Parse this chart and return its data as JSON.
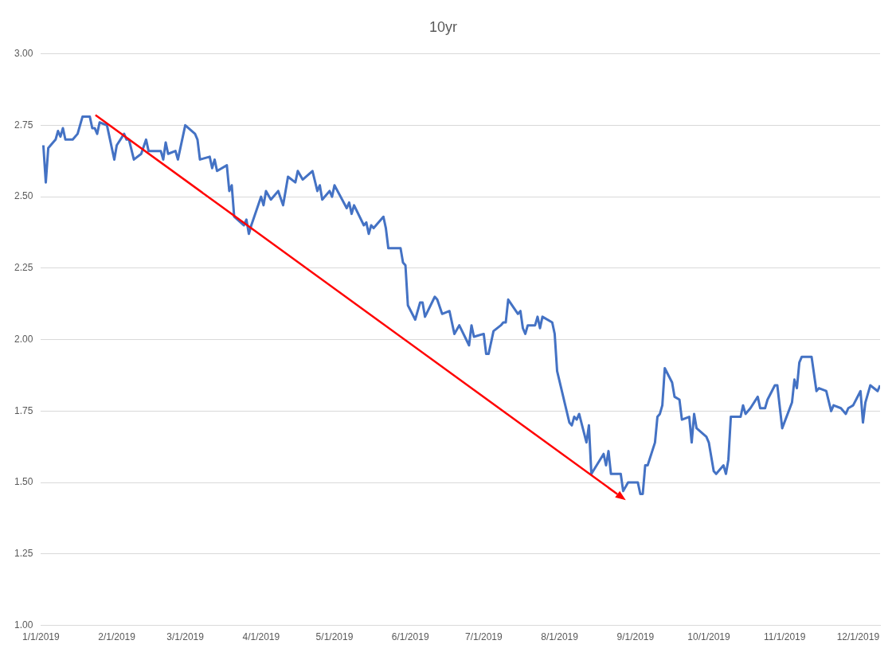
{
  "chart_data": {
    "type": "line",
    "title": "10yr",
    "x": [
      "2019-01-02",
      "2019-01-03",
      "2019-01-04",
      "2019-01-07",
      "2019-01-08",
      "2019-01-09",
      "2019-01-10",
      "2019-01-11",
      "2019-01-14",
      "2019-01-16",
      "2019-01-18",
      "2019-01-21",
      "2019-01-22",
      "2019-01-23",
      "2019-01-24",
      "2019-01-25",
      "2019-01-28",
      "2019-01-31",
      "2019-02-01",
      "2019-02-04",
      "2019-02-05",
      "2019-02-06",
      "2019-02-08",
      "2019-02-11",
      "2019-02-13",
      "2019-02-14",
      "2019-02-19",
      "2019-02-20",
      "2019-02-21",
      "2019-02-22",
      "2019-02-25",
      "2019-02-26",
      "2019-03-01",
      "2019-03-05",
      "2019-03-06",
      "2019-03-07",
      "2019-03-11",
      "2019-03-12",
      "2019-03-13",
      "2019-03-14",
      "2019-03-18",
      "2019-03-19",
      "2019-03-20",
      "2019-03-21",
      "2019-03-25",
      "2019-03-26",
      "2019-03-27",
      "2019-03-28",
      "2019-04-01",
      "2019-04-02",
      "2019-04-03",
      "2019-04-05",
      "2019-04-08",
      "2019-04-10",
      "2019-04-12",
      "2019-04-15",
      "2019-04-16",
      "2019-04-18",
      "2019-04-22",
      "2019-04-24",
      "2019-04-25",
      "2019-04-26",
      "2019-04-29",
      "2019-04-30",
      "2019-05-01",
      "2019-05-06",
      "2019-05-07",
      "2019-05-08",
      "2019-05-09",
      "2019-05-13",
      "2019-05-14",
      "2019-05-15",
      "2019-05-16",
      "2019-05-17",
      "2019-05-21",
      "2019-05-22",
      "2019-05-23",
      "2019-05-28",
      "2019-05-29",
      "2019-05-30",
      "2019-05-31",
      "2019-06-03",
      "2019-06-05",
      "2019-06-06",
      "2019-06-07",
      "2019-06-11",
      "2019-06-12",
      "2019-06-14",
      "2019-06-17",
      "2019-06-19",
      "2019-06-21",
      "2019-06-25",
      "2019-06-26",
      "2019-06-27",
      "2019-07-01",
      "2019-07-02",
      "2019-07-03",
      "2019-07-05",
      "2019-07-08",
      "2019-07-09",
      "2019-07-10",
      "2019-07-11",
      "2019-07-15",
      "2019-07-16",
      "2019-07-17",
      "2019-07-18",
      "2019-07-19",
      "2019-07-22",
      "2019-07-23",
      "2019-07-24",
      "2019-07-25",
      "2019-07-29",
      "2019-07-30",
      "2019-07-31",
      "2019-08-05",
      "2019-08-06",
      "2019-08-07",
      "2019-08-08",
      "2019-08-09",
      "2019-08-12",
      "2019-08-13",
      "2019-08-14",
      "2019-08-19",
      "2019-08-20",
      "2019-08-21",
      "2019-08-22",
      "2019-08-26",
      "2019-08-27",
      "2019-08-29",
      "2019-09-02",
      "2019-09-03",
      "2019-09-04",
      "2019-09-05",
      "2019-09-06",
      "2019-09-09",
      "2019-09-10",
      "2019-09-11",
      "2019-09-12",
      "2019-09-13",
      "2019-09-16",
      "2019-09-17",
      "2019-09-19",
      "2019-09-20",
      "2019-09-23",
      "2019-09-24",
      "2019-09-25",
      "2019-09-26",
      "2019-09-30",
      "2019-10-01",
      "2019-10-03",
      "2019-10-04",
      "2019-10-07",
      "2019-10-08",
      "2019-10-09",
      "2019-10-10",
      "2019-10-14",
      "2019-10-15",
      "2019-10-16",
      "2019-10-18",
      "2019-10-21",
      "2019-10-22",
      "2019-10-24",
      "2019-10-25",
      "2019-10-28",
      "2019-10-29",
      "2019-10-31",
      "2019-11-04",
      "2019-11-05",
      "2019-11-06",
      "2019-11-07",
      "2019-11-08",
      "2019-11-11",
      "2019-11-12",
      "2019-11-14",
      "2019-11-15",
      "2019-11-18",
      "2019-11-20",
      "2019-11-21",
      "2019-11-24",
      "2019-11-26",
      "2019-11-27",
      "2019-11-29",
      "2019-12-02",
      "2019-12-03",
      "2019-12-04",
      "2019-12-06",
      "2019-12-09",
      "2019-12-10"
    ],
    "series": [
      {
        "color": "#4472c4",
        "values": [
          2.68,
          2.55,
          2.67,
          2.7,
          2.73,
          2.71,
          2.74,
          2.7,
          2.7,
          2.72,
          2.78,
          2.78,
          2.74,
          2.74,
          2.72,
          2.76,
          2.75,
          2.63,
          2.68,
          2.72,
          2.7,
          2.7,
          2.63,
          2.65,
          2.7,
          2.66,
          2.66,
          2.63,
          2.69,
          2.65,
          2.66,
          2.63,
          2.75,
          2.72,
          2.7,
          2.63,
          2.64,
          2.6,
          2.63,
          2.59,
          2.61,
          2.52,
          2.54,
          2.43,
          2.4,
          2.42,
          2.37,
          2.4,
          2.5,
          2.47,
          2.52,
          2.49,
          2.52,
          2.47,
          2.57,
          2.55,
          2.59,
          2.56,
          2.59,
          2.52,
          2.54,
          2.49,
          2.52,
          2.5,
          2.54,
          2.46,
          2.48,
          2.44,
          2.47,
          2.4,
          2.41,
          2.37,
          2.4,
          2.39,
          2.43,
          2.39,
          2.32,
          2.32,
          2.27,
          2.26,
          2.12,
          2.07,
          2.13,
          2.13,
          2.08,
          2.15,
          2.14,
          2.09,
          2.1,
          2.02,
          2.05,
          1.98,
          2.05,
          2.01,
          2.02,
          1.95,
          1.95,
          2.03,
          2.05,
          2.06,
          2.06,
          2.14,
          2.09,
          2.1,
          2.04,
          2.02,
          2.05,
          2.05,
          2.08,
          2.04,
          2.08,
          2.06,
          2.02,
          1.89,
          1.71,
          1.7,
          1.73,
          1.72,
          1.74,
          1.64,
          1.7,
          1.53,
          1.6,
          1.56,
          1.61,
          1.53,
          1.53,
          1.47,
          1.5,
          1.5,
          1.46,
          1.46,
          1.56,
          1.56,
          1.64,
          1.73,
          1.74,
          1.77,
          1.9,
          1.85,
          1.8,
          1.79,
          1.72,
          1.73,
          1.64,
          1.74,
          1.69,
          1.66,
          1.64,
          1.54,
          1.53,
          1.56,
          1.53,
          1.58,
          1.73,
          1.73,
          1.77,
          1.74,
          1.76,
          1.8,
          1.76,
          1.76,
          1.79,
          1.84,
          1.84,
          1.69,
          1.78,
          1.86,
          1.83,
          1.92,
          1.94,
          1.94,
          1.94,
          1.82,
          1.83,
          1.82,
          1.75,
          1.77,
          1.76,
          1.74,
          1.76,
          1.77,
          1.82,
          1.71,
          1.78,
          1.84,
          1.82,
          1.84
        ]
      }
    ],
    "xlim": [
      "2019-01-01",
      "2019-12-10"
    ],
    "xticks": [
      {
        "value": "2019-01-01",
        "label": "1/1/2019"
      },
      {
        "value": "2019-02-01",
        "label": "2/1/2019"
      },
      {
        "value": "2019-03-01",
        "label": "3/1/2019"
      },
      {
        "value": "2019-04-01",
        "label": "4/1/2019"
      },
      {
        "value": "2019-05-01",
        "label": "5/1/2019"
      },
      {
        "value": "2019-06-01",
        "label": "6/1/2019"
      },
      {
        "value": "2019-07-01",
        "label": "7/1/2019"
      },
      {
        "value": "2019-08-01",
        "label": "8/1/2019"
      },
      {
        "value": "2019-09-01",
        "label": "9/1/2019"
      },
      {
        "value": "2019-10-01",
        "label": "10/1/2019"
      },
      {
        "value": "2019-11-01",
        "label": "11/1/2019"
      },
      {
        "value": "2019-12-01",
        "label": "12/1/2019"
      }
    ],
    "ylim": [
      1,
      3
    ],
    "yticks": [
      {
        "value": 1,
        "label": "1.00"
      },
      {
        "value": 1.25,
        "label": "1.25"
      },
      {
        "value": 1.5,
        "label": "1.50"
      },
      {
        "value": 1.75,
        "label": "1.75"
      },
      {
        "value": 2,
        "label": "2.00"
      },
      {
        "value": 2.25,
        "label": "2.25"
      },
      {
        "value": 2.5,
        "label": "2.50"
      },
      {
        "value": 2.75,
        "label": "2.75"
      },
      {
        "value": 3,
        "label": "3.00"
      }
    ],
    "grid": "y",
    "legend": false,
    "marker": "none",
    "line_style": "solid"
  }
}
